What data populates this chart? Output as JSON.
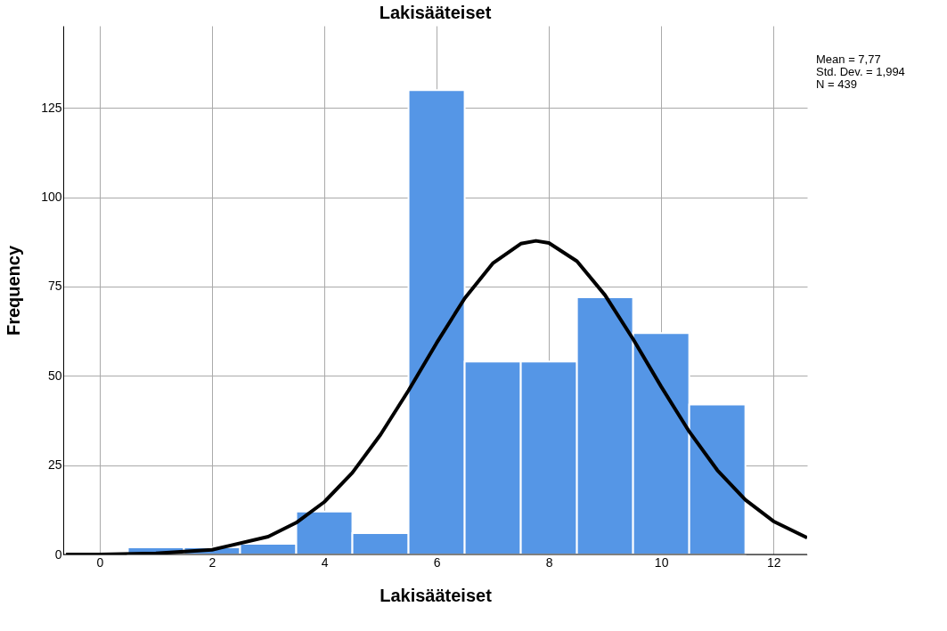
{
  "chart_data": {
    "type": "histogram",
    "title": "Lakisääteiset",
    "xlabel": "Lakisääteiset",
    "ylabel": "Frequency",
    "bins": [
      0.5,
      1.5,
      2.5,
      3.5,
      4.5,
      5.5,
      6.5,
      7.5,
      8.5,
      9.5,
      10.5,
      11.5
    ],
    "series": [
      {
        "color": "#5596e6",
        "values": [
          2,
          2,
          3,
          12,
          6,
          130,
          54,
          54,
          72,
          62,
          42
        ]
      },
      {
        "type": "line",
        "color": "#000000",
        "x": [
          -0.6,
          0,
          1,
          2,
          3,
          3.5,
          4,
          4.5,
          5,
          5.5,
          6,
          6.5,
          7,
          7.5,
          7.77,
          8,
          8.5,
          9,
          9.5,
          10,
          10.5,
          11,
          11.5,
          12,
          12.6
        ],
        "values": [
          0.0,
          0.0,
          0.3,
          1.3,
          5.0,
          8.9,
          14.7,
          22.9,
          33.5,
          45.9,
          59.2,
          71.7,
          81.5,
          87.0,
          87.8,
          87.2,
          82.1,
          72.6,
          60.3,
          47.0,
          34.4,
          23.6,
          15.3,
          9.3,
          4.7
        ]
      }
    ],
    "xlim": [
      -0.65,
      12.6
    ],
    "ylim": [
      0,
      148
    ],
    "xticks": [
      0,
      2,
      4,
      6,
      8,
      10,
      12
    ],
    "yticks": [
      0,
      25,
      50,
      75,
      100,
      125
    ],
    "grid": true,
    "marker": "none",
    "line_style": "solid",
    "annotations": [
      "Mean = 7,77",
      "Std. Dev. = 1,994",
      "N = 439"
    ]
  }
}
